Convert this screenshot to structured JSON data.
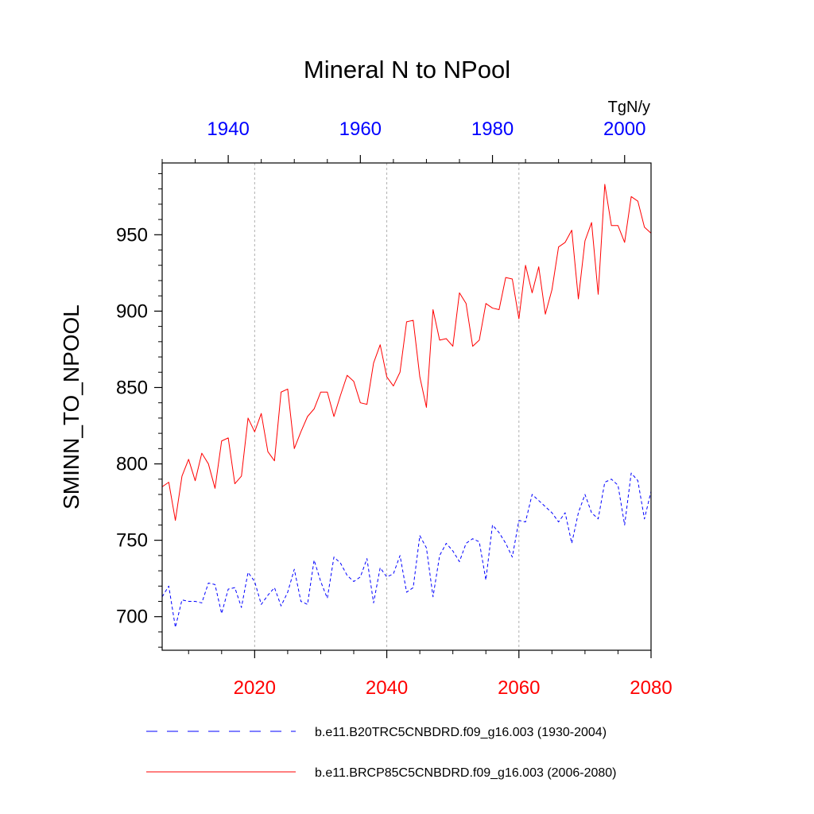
{
  "chart_data": {
    "type": "line",
    "title": "Mineral N to NPool",
    "ylabel": "SMINN_TO_NPOOL",
    "units": "TgN/y",
    "ylim": [
      678,
      997
    ],
    "yticks": [
      700,
      750,
      800,
      850,
      900,
      950
    ],
    "ytick_labels": [
      "700",
      "750",
      "800",
      "850",
      "900",
      "950"
    ],
    "bottom_axis": {
      "range": [
        2006,
        2080
      ],
      "ticks": [
        2020,
        2040,
        2060,
        2080
      ],
      "tick_labels": [
        "2020",
        "2040",
        "2060",
        "2080"
      ],
      "color": "#ff0000"
    },
    "top_axis": {
      "range": [
        1930,
        2004
      ],
      "ticks": [
        1940,
        1960,
        1980,
        2000
      ],
      "tick_labels": [
        "1940",
        "1960",
        "1980",
        "2000"
      ],
      "color": "#0000ff"
    },
    "gridlines_x": [
      2020,
      2040,
      2060
    ],
    "series": [
      {
        "name": "b.e11.B20TRC5CNBDRD.f09_g16.003 (1930-2004)",
        "axis": "top",
        "color": "#0000ff",
        "dash": true,
        "x": [
          1930,
          1931,
          1932,
          1933,
          1934,
          1935,
          1936,
          1937,
          1938,
          1939,
          1940,
          1941,
          1942,
          1943,
          1944,
          1945,
          1946,
          1947,
          1948,
          1949,
          1950,
          1951,
          1952,
          1953,
          1954,
          1955,
          1956,
          1957,
          1958,
          1959,
          1960,
          1961,
          1962,
          1963,
          1964,
          1965,
          1966,
          1967,
          1968,
          1969,
          1970,
          1971,
          1972,
          1973,
          1974,
          1975,
          1976,
          1977,
          1978,
          1979,
          1980,
          1981,
          1982,
          1983,
          1984,
          1985,
          1986,
          1987,
          1988,
          1989,
          1990,
          1991,
          1992,
          1993,
          1994,
          1995,
          1996,
          1997,
          1998,
          1999,
          2000,
          2001,
          2002,
          2003,
          2004
        ],
        "values": [
          713,
          720,
          693,
          711,
          710,
          710,
          709,
          722,
          721,
          702,
          718,
          719,
          706,
          729,
          723,
          708,
          714,
          719,
          707,
          716,
          731,
          710,
          708,
          737,
          723,
          712,
          739,
          735,
          727,
          723,
          726,
          738,
          709,
          732,
          726,
          728,
          740,
          716,
          719,
          753,
          745,
          713,
          740,
          748,
          743,
          736,
          748,
          751,
          749,
          724,
          760,
          755,
          748,
          739,
          763,
          762,
          780,
          776,
          772,
          768,
          762,
          768,
          748,
          768,
          780,
          768,
          764,
          788,
          790,
          786,
          760,
          794,
          789,
          764,
          782
        ]
      },
      {
        "name": "b.e11.BRCP85C5CNBDRD.f09_g16.003 (2006-2080)",
        "axis": "bottom",
        "color": "#ff0000",
        "dash": false,
        "x": [
          2006,
          2007,
          2008,
          2009,
          2010,
          2011,
          2012,
          2013,
          2014,
          2015,
          2016,
          2017,
          2018,
          2019,
          2020,
          2021,
          2022,
          2023,
          2024,
          2025,
          2026,
          2027,
          2028,
          2029,
          2030,
          2031,
          2032,
          2033,
          2034,
          2035,
          2036,
          2037,
          2038,
          2039,
          2040,
          2041,
          2042,
          2043,
          2044,
          2045,
          2046,
          2047,
          2048,
          2049,
          2050,
          2051,
          2052,
          2053,
          2054,
          2055,
          2056,
          2057,
          2058,
          2059,
          2060,
          2061,
          2062,
          2063,
          2064,
          2065,
          2066,
          2067,
          2068,
          2069,
          2070,
          2071,
          2072,
          2073,
          2074,
          2075,
          2076,
          2077,
          2078,
          2079,
          2080
        ],
        "values": [
          785,
          788,
          763,
          792,
          803,
          789,
          807,
          800,
          784,
          815,
          817,
          787,
          792,
          830,
          821,
          833,
          808,
          802,
          847,
          849,
          810,
          821,
          831,
          836,
          847,
          847,
          831,
          845,
          858,
          854,
          840,
          839,
          866,
          878,
          857,
          851,
          860,
          893,
          894,
          857,
          837,
          901,
          881,
          882,
          877,
          912,
          905,
          877,
          881,
          905,
          902,
          901,
          922,
          921,
          895,
          930,
          912,
          929,
          898,
          914,
          942,
          945,
          953,
          908,
          946,
          958,
          911,
          983,
          956,
          956,
          945,
          975,
          972,
          955,
          951
        ]
      }
    ]
  }
}
